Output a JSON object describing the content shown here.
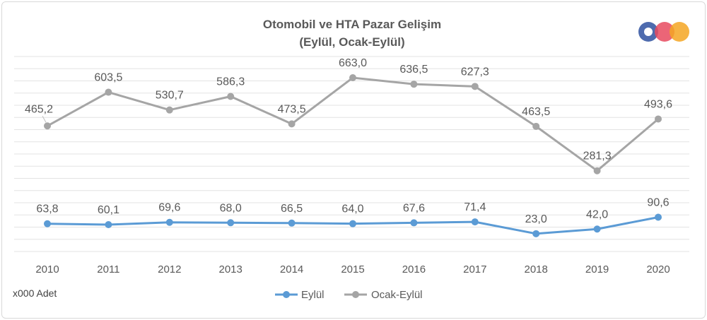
{
  "chart_data": {
    "type": "line",
    "title": "Otomobil ve HTA Pazar Gelişim",
    "subtitle": "(Eylül, Ocak-Eylül)",
    "categories": [
      "2010",
      "2011",
      "2012",
      "2013",
      "2014",
      "2015",
      "2016",
      "2017",
      "2018",
      "2019",
      "2020"
    ],
    "series": [
      {
        "name": "Eylül",
        "color": "#5B9BD5",
        "values": [
          63.8,
          60.1,
          69.6,
          68.0,
          66.5,
          64.0,
          67.6,
          71.4,
          23.0,
          42.0,
          90.6
        ],
        "labels": [
          "63,8",
          "60,1",
          "69,6",
          "68,0",
          "66,5",
          "64,0",
          "67,6",
          "71,4",
          "23,0",
          "42,0",
          "90,6"
        ]
      },
      {
        "name": "Ocak-Eylül",
        "color": "#A5A5A5",
        "values": [
          465.2,
          603.5,
          530.7,
          586.3,
          473.5,
          663.0,
          636.5,
          627.3,
          463.5,
          281.3,
          493.6
        ],
        "labels": [
          "465,2",
          "603,5",
          "530,7",
          "586,3",
          "473,5",
          "663,0",
          "636,5",
          "627,3",
          "463,5",
          "281,3",
          "493,6"
        ]
      }
    ],
    "ylim": [
      -50,
      750
    ],
    "grid": true,
    "legend": "bottom-center",
    "unit_note": "x000 Adet"
  },
  "logo": {
    "name": "odd-logo-icon",
    "colors": [
      "#3B5BA5",
      "#E84A5F",
      "#F5A623"
    ]
  }
}
